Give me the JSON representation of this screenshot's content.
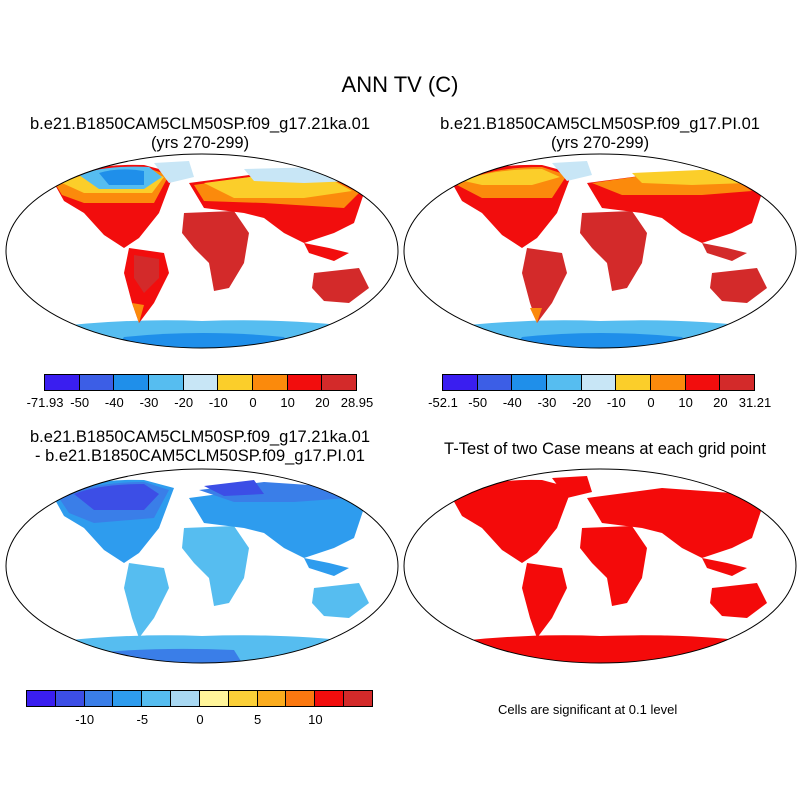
{
  "title": "ANN TV (C)",
  "panels": {
    "top_left": {
      "title": "b.e21.B1850CAM5CLM50SP.f09_g17.21ka.01",
      "subtitle": "(yrs 270-299)"
    },
    "top_right": {
      "title": "b.e21.B1850CAM5CLM50SP.f09_g17.PI.01",
      "subtitle": "(yrs 270-299)"
    },
    "bottom_left": {
      "title": "b.e21.B1850CAM5CLM50SP.f09_g17.21ka.01",
      "subtitle": "- b.e21.B1850CAM5CLM50SP.f09_g17.PI.01"
    },
    "bottom_right": {
      "title": "T-Test of two Case means at each grid point",
      "note": "Cells are significant at 0.1 level"
    }
  },
  "legends": {
    "top_left": {
      "colors": [
        "#3a1ef0",
        "#3c5ee6",
        "#1f8fea",
        "#56bdf0",
        "#c8e6f6",
        "#fbce2a",
        "#fb8a0c",
        "#f20d0d",
        "#d32a2a"
      ],
      "labels": [
        "-71.93",
        "-50",
        "-40",
        "-30",
        "-20",
        "-10",
        "0",
        "10",
        "20",
        "28.95"
      ]
    },
    "top_right": {
      "colors": [
        "#3a1ef0",
        "#3c5ee6",
        "#1f8fea",
        "#56bdf0",
        "#c8e6f6",
        "#fbce2a",
        "#fb8a0c",
        "#f20d0d",
        "#d32a2a"
      ],
      "labels": [
        "-52.1",
        "-50",
        "-40",
        "-30",
        "-20",
        "-10",
        "0",
        "10",
        "20",
        "31.21"
      ]
    },
    "bottom_left": {
      "colors": [
        "#3a1ef0",
        "#3c4ee6",
        "#3a7ee8",
        "#2e9cee",
        "#56bdf0",
        "#a8d8f2",
        "#fff59a",
        "#fbd038",
        "#fbac1e",
        "#fb7810",
        "#f20d0d",
        "#d32a2a"
      ],
      "labels": [
        "-10",
        "-5",
        "0",
        "5",
        "10"
      ]
    }
  },
  "palette": {
    "warm": "#d32a2a",
    "red": "#f20d0d",
    "orange": "#fb8a0c",
    "yellow": "#fbce2a",
    "pale": "#c8e6f6",
    "light_blue": "#56bdf0",
    "blue": "#1f8fea",
    "deep_blue": "#3c5ee6",
    "violet": "#3a1ef0",
    "sig_red": "#f40a0a"
  }
}
